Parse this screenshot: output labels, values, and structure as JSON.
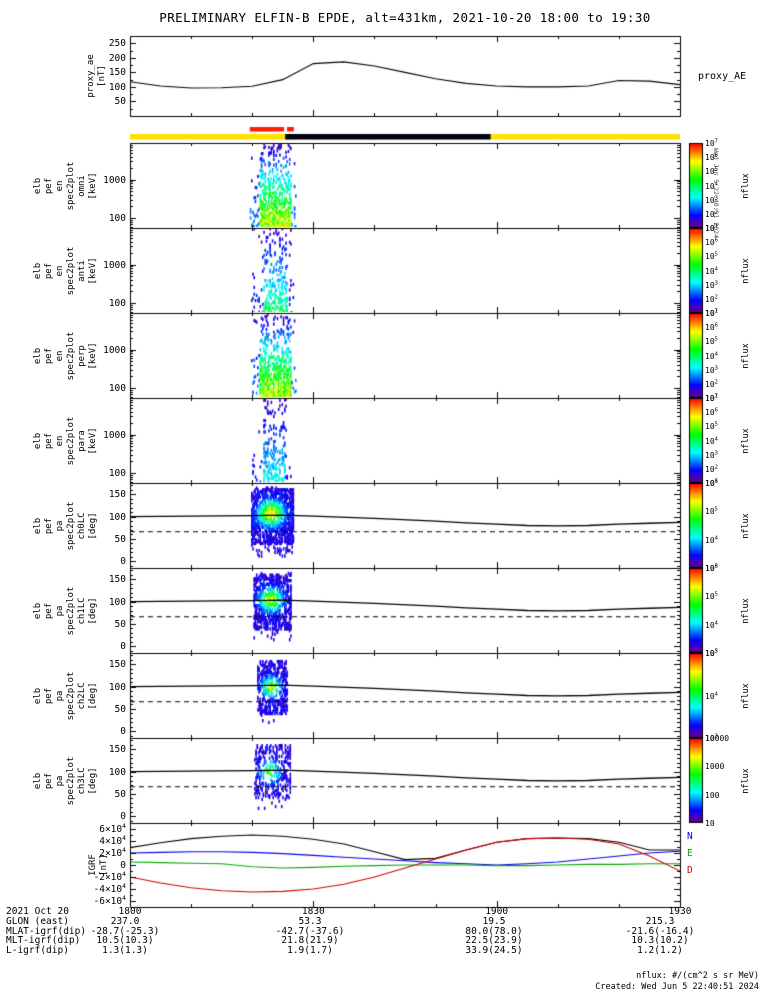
{
  "title": "PRELIMINARY ELFIN-B EPDE, alt=431km, 2021-10-20 18:00 to 19:30",
  "side_note": "Wed Jun  5 22:40:51 2024",
  "footer": {
    "date_label": "2021 Oct 20",
    "tick_labels": [
      "1800",
      "1830",
      "1900",
      "1930"
    ],
    "rows": [
      {
        "label": "GLON (east)",
        "values": [
          "237.0",
          "53.3",
          "19.5",
          "215.3"
        ]
      },
      {
        "label": "MLAT-igrf(dip)",
        "values": [
          "-28.7(-25.3)",
          "-42.7(-37.6)",
          "80.0(78.0)",
          "-21.6(-16.4)"
        ]
      },
      {
        "label": "MLT-igrf(dip)",
        "values": [
          "10.5(10.3)",
          "21.8(21.9)",
          "22.5(23.9)",
          "10.3(10.2)"
        ]
      },
      {
        "label": "L-igrf(dip)",
        "values": [
          "1.3(1.3)",
          "1.9(1.7)",
          "33.9(24.5)",
          "1.2(1.2)"
        ]
      }
    ],
    "nflux_units": "nflux: #/(cm^2 s sr MeV)",
    "created": "Created: Wed Jun  5 22:40:51 2024"
  },
  "chart_data": {
    "type": "heatmap",
    "description": "Multi-panel ELFIN-B EPDE survey plot: proxy AE index, science-zone availability bar, 4 electron energy-flux spectrograms (omni/anti/perp/para), 4 pitch-angle spectrograms (ch0LC-ch3LC), IGRF model field components.",
    "x_axis": {
      "range_minutes": [
        0,
        90
      ],
      "tick_minutes": [
        0,
        30,
        60,
        90
      ],
      "tick_labels": [
        "1800",
        "1830",
        "1900",
        "1930"
      ],
      "start": "2021-10-20 18:00"
    },
    "loss_cone": {
      "x": [
        0,
        10,
        20,
        25,
        30,
        40,
        50,
        55,
        60,
        65,
        70,
        75,
        80,
        85,
        90
      ],
      "solid": [
        100,
        101,
        102,
        103,
        101,
        96,
        90,
        86,
        83,
        80,
        79,
        80,
        83,
        85,
        87
      ],
      "dashed_value": 66
    },
    "panels": [
      {
        "id": "proxy_ae",
        "kind": "line",
        "ylabel_lines": [
          "proxy_ae",
          "[nT]"
        ],
        "right_label": "proxy_AE",
        "ylim": [
          0,
          275
        ],
        "y_minor_step": 25,
        "yticks": [
          {
            "v": 50,
            "label": "50"
          },
          {
            "v": 100,
            "label": "100"
          },
          {
            "v": 150,
            "label": "150"
          },
          {
            "v": 200,
            "label": "200"
          },
          {
            "v": 250,
            "label": "250"
          }
        ],
        "line_color": "#000000",
        "x": [
          0,
          5,
          10,
          15,
          20,
          25,
          30,
          35,
          40,
          45,
          50,
          55,
          60,
          65,
          70,
          75,
          80,
          85,
          90
        ],
        "values": [
          118,
          103,
          96,
          97,
          102,
          125,
          180,
          186,
          172,
          150,
          128,
          112,
          103,
          100,
          100,
          103,
          122,
          120,
          108
        ]
      },
      {
        "id": "availability_bar",
        "kind": "bar",
        "background_color": "#ffdf00",
        "background_t": [
          0,
          90
        ],
        "black_segment_t": [
          25.4,
          59.0
        ],
        "red_marker_t": [
          [
            19.6,
            25.2
          ],
          [
            25.7,
            26.8
          ]
        ],
        "red_color": "#ff1e00",
        "black_color": "#000010"
      },
      {
        "id": "en_spec2plot_omni",
        "kind": "energy_spec",
        "ylabel_lines": [
          "elb",
          "pef",
          "en",
          "spec2plot",
          "omni",
          "[keV]"
        ],
        "yscale": "log",
        "ylim": [
          55,
          9000
        ],
        "yticks": [
          {
            "v": 100,
            "label": "100"
          },
          {
            "v": 1000,
            "label": "1000"
          }
        ],
        "colorbar": {
          "labels": [
            "10^7",
            "10^6",
            "10^5",
            "10^4",
            "10^3",
            "10^2",
            "10^1"
          ],
          "unit": "nflux"
        },
        "burst": {
          "t": [
            19.6,
            27.0
          ],
          "core_t": [
            21.0,
            26.2
          ],
          "intensity": 1.0,
          "seed": 11
        }
      },
      {
        "id": "en_spec2plot_anti",
        "kind": "energy_spec",
        "ylabel_lines": [
          "elb",
          "pef",
          "en",
          "spec2plot",
          "anti",
          "[keV]"
        ],
        "yscale": "log",
        "ylim": [
          55,
          9000
        ],
        "yticks": [
          {
            "v": 100,
            "label": "100"
          },
          {
            "v": 1000,
            "label": "1000"
          }
        ],
        "colorbar": {
          "labels": [
            "10^7",
            "10^6",
            "10^5",
            "10^4",
            "10^3",
            "10^2",
            "10^1"
          ],
          "unit": "nflux"
        },
        "burst": {
          "t": [
            19.8,
            26.6
          ],
          "core_t": [
            21.6,
            25.6
          ],
          "intensity": 0.6,
          "seed": 22
        }
      },
      {
        "id": "en_spec2plot_perp",
        "kind": "energy_spec",
        "ylabel_lines": [
          "elb",
          "pef",
          "en",
          "spec2plot",
          "perp",
          "[keV]"
        ],
        "yscale": "log",
        "ylim": [
          55,
          9000
        ],
        "yticks": [
          {
            "v": 100,
            "label": "100"
          },
          {
            "v": 1000,
            "label": "1000"
          }
        ],
        "colorbar": {
          "labels": [
            "10^7",
            "10^6",
            "10^5",
            "10^4",
            "10^3",
            "10^2",
            "10^1"
          ],
          "unit": "nflux"
        },
        "burst": {
          "t": [
            19.6,
            27.0
          ],
          "core_t": [
            21.0,
            26.2
          ],
          "intensity": 1.0,
          "seed": 33
        }
      },
      {
        "id": "en_spec2plot_para",
        "kind": "energy_spec",
        "ylabel_lines": [
          "elb",
          "pef",
          "en",
          "spec2plot",
          "para",
          "[keV]"
        ],
        "yscale": "log",
        "ylim": [
          55,
          9000
        ],
        "yticks": [
          {
            "v": 100,
            "label": "100"
          },
          {
            "v": 1000,
            "label": "1000"
          }
        ],
        "colorbar": {
          "labels": [
            "10^7",
            "10^6",
            "10^5",
            "10^4",
            "10^3",
            "10^2",
            "10^1"
          ],
          "unit": "nflux"
        },
        "burst": {
          "t": [
            20.0,
            26.2
          ],
          "core_t": [
            21.6,
            25.2
          ],
          "intensity": 0.45,
          "seed": 44
        }
      },
      {
        "id": "pa_spec2plot_ch0LC",
        "kind": "pa_spec",
        "ylabel_lines": [
          "elb",
          "pef",
          "pa",
          "spec2plot",
          "ch0LC",
          "[deg]"
        ],
        "ylim": [
          -15,
          175
        ],
        "y_minor_step": 10,
        "yticks": [
          {
            "v": 0,
            "label": "0"
          },
          {
            "v": 50,
            "label": "50"
          },
          {
            "v": 100,
            "label": "100"
          },
          {
            "v": 150,
            "label": "150"
          }
        ],
        "colorbar": {
          "labels": [
            "10^6",
            "10^5",
            "10^4",
            "10^3"
          ],
          "unit": "nflux"
        },
        "burst": {
          "t": [
            19.8,
            26.6
          ],
          "pa_range": [
            12,
            168
          ],
          "density": 1.0,
          "core": {
            "t_center": 23.0,
            "t_sigma": 1.8,
            "pa_center": 108,
            "pa_sigma": 24,
            "strength": 0.9
          },
          "seed": 55
        }
      },
      {
        "id": "pa_spec2plot_ch1LC",
        "kind": "pa_spec",
        "ylabel_lines": [
          "elb",
          "pef",
          "pa",
          "spec2plot",
          "ch1LC",
          "[deg]"
        ],
        "ylim": [
          -15,
          175
        ],
        "y_minor_step": 10,
        "yticks": [
          {
            "v": 0,
            "label": "0"
          },
          {
            "v": 50,
            "label": "50"
          },
          {
            "v": 100,
            "label": "100"
          },
          {
            "v": 150,
            "label": "150"
          }
        ],
        "colorbar": {
          "labels": [
            "10^6",
            "10^5",
            "10^4",
            "10^3"
          ],
          "unit": "nflux"
        },
        "burst": {
          "t": [
            20.2,
            26.2
          ],
          "pa_range": [
            15,
            165
          ],
          "density": 0.85,
          "core": {
            "t_center": 23.0,
            "t_sigma": 1.6,
            "pa_center": 105,
            "pa_sigma": 22,
            "strength": 0.8
          },
          "seed": 66
        }
      },
      {
        "id": "pa_spec2plot_ch2LC",
        "kind": "pa_spec",
        "ylabel_lines": [
          "elb",
          "pef",
          "pa",
          "spec2plot",
          "ch2LC",
          "[deg]"
        ],
        "ylim": [
          -15,
          175
        ],
        "y_minor_step": 10,
        "yticks": [
          {
            "v": 0,
            "label": "0"
          },
          {
            "v": 50,
            "label": "50"
          },
          {
            "v": 100,
            "label": "100"
          },
          {
            "v": 150,
            "label": "150"
          }
        ],
        "colorbar": {
          "labels": [
            "10^5",
            "10^4",
            "10^3"
          ],
          "unit": "nflux"
        },
        "burst": {
          "t": [
            20.8,
            25.6
          ],
          "pa_range": [
            20,
            160
          ],
          "density": 0.7,
          "core": {
            "t_center": 23.0,
            "t_sigma": 1.3,
            "pa_center": 100,
            "pa_sigma": 18,
            "strength": 0.75
          },
          "seed": 77
        }
      },
      {
        "id": "pa_spec2plot_ch3LC",
        "kind": "pa_spec",
        "ylabel_lines": [
          "elb",
          "pef",
          "pa",
          "spec2plot",
          "ch3LC",
          "[deg]"
        ],
        "ylim": [
          -15,
          175
        ],
        "y_minor_step": 10,
        "yticks": [
          {
            "v": 0,
            "label": "0"
          },
          {
            "v": 50,
            "label": "50"
          },
          {
            "v": 100,
            "label": "100"
          },
          {
            "v": 150,
            "label": "150"
          }
        ],
        "colorbar": {
          "labels": [
            "10000",
            "1000",
            "100",
            "10"
          ],
          "unit": "nflux"
        },
        "burst": {
          "t": [
            20.3,
            26.2
          ],
          "pa_range": [
            18,
            162
          ],
          "density": 0.5,
          "core": {
            "t_center": 22.8,
            "t_sigma": 1.4,
            "pa_center": 100,
            "pa_sigma": 20,
            "strength": 0.55
          },
          "seed": 88
        }
      },
      {
        "id": "igrf",
        "kind": "multiline",
        "ylabel_lines": [
          "IGRF",
          "[nT]"
        ],
        "ylim": [
          -70000,
          70000
        ],
        "y_minor_step": 10000,
        "yticks": [
          {
            "v": 60000,
            "label": "6×10^4"
          },
          {
            "v": 40000,
            "label": "4×10^4"
          },
          {
            "v": 20000,
            "label": "2×10^4"
          },
          {
            "v": 0,
            "label": "0"
          },
          {
            "v": -20000,
            "label": "-2×10^4"
          },
          {
            "v": -40000,
            "label": "-4×10^4"
          },
          {
            "v": -60000,
            "label": "-6×10^4"
          }
        ],
        "x": [
          0,
          5,
          10,
          15,
          20,
          25,
          30,
          35,
          40,
          45,
          50,
          55,
          60,
          65,
          70,
          75,
          80,
          85,
          90
        ],
        "series": [
          {
            "name": "Bt",
            "color": "#000000",
            "values": [
              29000,
              37000,
              44000,
              48000,
              50000,
              48000,
              43000,
              35000,
              22000,
              9000,
              11000,
              25000,
              38000,
              44000,
              45000,
              44000,
              38000,
              25000,
              25000
            ]
          },
          {
            "name": "N",
            "color": "#0000ee",
            "right_label": "N",
            "values": [
              20000,
              21000,
              22000,
              22000,
              21000,
              19000,
              16000,
              13000,
              10000,
              7000,
              4000,
              2000,
              0,
              2000,
              5000,
              10000,
              15000,
              20000,
              23000
            ]
          },
          {
            "name": "E",
            "color": "#00aa00",
            "right_label": "E",
            "values": [
              5000,
              4000,
              3000,
              2000,
              -3000,
              -5000,
              -4000,
              -2000,
              -1000,
              0,
              0,
              0,
              -1000,
              -1000,
              0,
              1000,
              1000,
              2000,
              2000
            ]
          },
          {
            "name": "D",
            "color": "#cc0000",
            "right_label": "D",
            "values": [
              -20000,
              -30000,
              -38000,
              -43000,
              -45000,
              -44000,
              -40000,
              -32000,
              -20000,
              -5000,
              10000,
              25000,
              38000,
              44000,
              45000,
              43000,
              35000,
              15000,
              -10000
            ]
          }
        ]
      }
    ]
  }
}
